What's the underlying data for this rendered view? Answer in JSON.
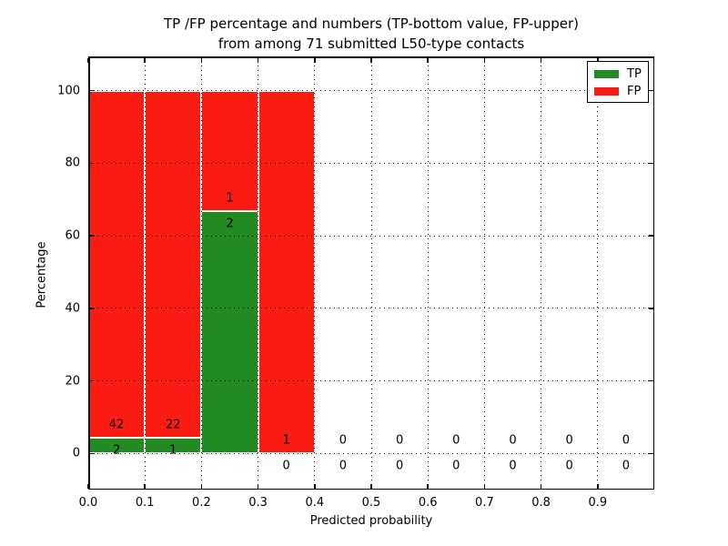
{
  "title": {
    "line1": "TP /FP percentage and numbers (TP-bottom value, FP-upper)",
    "line2": "from among 71 submitted L50-type contacts"
  },
  "chart_data": {
    "type": "bar",
    "variant": "stacked_percentage_histogram",
    "title": "TP /FP percentage and numbers (TP-bottom value, FP-upper) from among 71 submitted L50-type contacts",
    "xlabel": "Predicted probability",
    "ylabel": "Percentage",
    "xlim": [
      0.0,
      1.0
    ],
    "ylim": [
      -9.9,
      109.4
    ],
    "grid": true,
    "legend_position": "upper right",
    "total_contacts": 71,
    "series": [
      {
        "name": "TP",
        "color": "#218a21"
      },
      {
        "name": "FP",
        "color": "#fa1b12"
      }
    ],
    "xtick_values": [
      0.0,
      0.1,
      0.2,
      0.3,
      0.4,
      0.5,
      0.6,
      0.7,
      0.8,
      0.9
    ],
    "xtick_labels": [
      "0.0",
      "0.1",
      "0.2",
      "0.3",
      "0.4",
      "0.5",
      "0.6",
      "0.7",
      "0.8",
      "0.9"
    ],
    "ytick_values": [
      0,
      20,
      40,
      60,
      80,
      100
    ],
    "ytick_labels": [
      "0",
      "20",
      "40",
      "60",
      "80",
      "100"
    ],
    "bins": [
      {
        "x_start": 0.0,
        "x_end": 0.1,
        "tp_count": 2,
        "fp_count": 42,
        "tp_pct": 4.5,
        "fp_pct": 95.5
      },
      {
        "x_start": 0.1,
        "x_end": 0.2,
        "tp_count": 1,
        "fp_count": 22,
        "tp_pct": 4.3,
        "fp_pct": 95.7
      },
      {
        "x_start": 0.2,
        "x_end": 0.3,
        "tp_count": 2,
        "fp_count": 1,
        "tp_pct": 66.7,
        "fp_pct": 33.3
      },
      {
        "x_start": 0.3,
        "x_end": 0.4,
        "tp_count": 0,
        "fp_count": 1,
        "tp_pct": 0.0,
        "fp_pct": 100.0
      },
      {
        "x_start": 0.4,
        "x_end": 0.5,
        "tp_count": 0,
        "fp_count": 0,
        "tp_pct": 0.0,
        "fp_pct": 0.0
      },
      {
        "x_start": 0.5,
        "x_end": 0.6,
        "tp_count": 0,
        "fp_count": 0,
        "tp_pct": 0.0,
        "fp_pct": 0.0
      },
      {
        "x_start": 0.6,
        "x_end": 0.7,
        "tp_count": 0,
        "fp_count": 0,
        "tp_pct": 0.0,
        "fp_pct": 0.0
      },
      {
        "x_start": 0.7,
        "x_end": 0.8,
        "tp_count": 0,
        "fp_count": 0,
        "tp_pct": 0.0,
        "fp_pct": 0.0
      },
      {
        "x_start": 0.8,
        "x_end": 0.9,
        "tp_count": 0,
        "fp_count": 0,
        "tp_pct": 0.0,
        "fp_pct": 0.0
      },
      {
        "x_start": 0.9,
        "x_end": 1.0,
        "tp_count": 0,
        "fp_count": 0,
        "tp_pct": 0.0,
        "fp_pct": 0.0
      }
    ]
  }
}
